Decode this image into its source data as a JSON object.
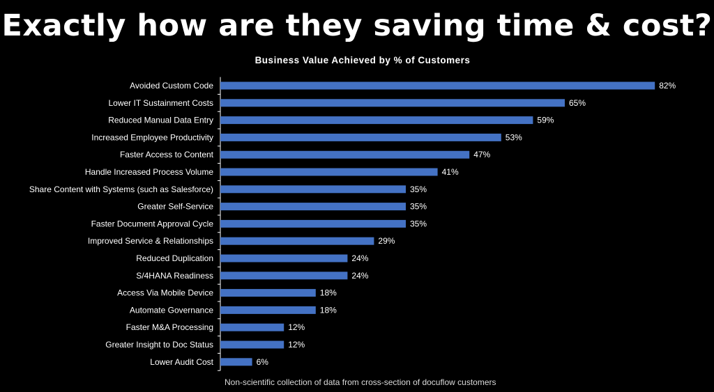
{
  "slide": {
    "headline": "Exactly how are they saving time & cost?",
    "footnote": "Non-scientific collection of data from cross-section of docuflow customers"
  },
  "chart_data": {
    "type": "bar",
    "orientation": "horizontal",
    "title": "Business Value Achieved by % of Customers",
    "xlabel": "",
    "ylabel": "",
    "xlim": [
      0,
      100
    ],
    "grid": false,
    "legend": "none",
    "bar_color": "#4472c4",
    "categories": [
      "Avoided Custom Code",
      "Lower IT Sustainment Costs",
      "Reduced Manual Data Entry",
      "Increased Employee Productivity",
      "Faster Access to Content",
      "Handle Increased Process Volume",
      "Share Content with Systems (such as Salesforce)",
      "Greater Self-Service",
      "Faster Document Approval Cycle",
      "Improved Service & Relationships",
      "Reduced Duplication",
      "S/4HANA Readiness",
      "Access Via Mobile Device",
      "Automate Governance",
      "Faster M&A Processing",
      "Greater Insight to Doc Status",
      "Lower Audit Cost"
    ],
    "values": [
      82,
      65,
      59,
      53,
      47,
      41,
      35,
      35,
      35,
      29,
      24,
      24,
      18,
      18,
      12,
      12,
      6
    ],
    "value_labels": [
      "82%",
      "65%",
      "59%",
      "53%",
      "47%",
      "41%",
      "35%",
      "35%",
      "35%",
      "29%",
      "24%",
      "24%",
      "18%",
      "18%",
      "12%",
      "12%",
      "6%"
    ]
  }
}
